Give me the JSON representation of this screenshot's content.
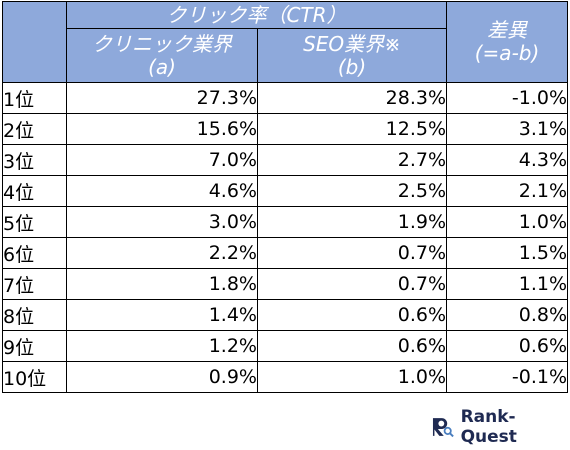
{
  "table": {
    "header": {
      "ctr_group": "クリック率（CTR）",
      "clinic_line1": "クリニック業界",
      "clinic_line2": "(a)",
      "seo_line1": "SEO業界※",
      "seo_line2": "(b)",
      "diff_line1": "差異",
      "diff_line2": "(=a-b)"
    },
    "rows": [
      {
        "rank": "1位",
        "clinic": "27.3%",
        "seo": "28.3%",
        "diff": "-1.0%"
      },
      {
        "rank": "2位",
        "clinic": "15.6%",
        "seo": "12.5%",
        "diff": "3.1%"
      },
      {
        "rank": "3位",
        "clinic": "7.0%",
        "seo": "2.7%",
        "diff": "4.3%"
      },
      {
        "rank": "4位",
        "clinic": "4.6%",
        "seo": "2.5%",
        "diff": "2.1%"
      },
      {
        "rank": "5位",
        "clinic": "3.0%",
        "seo": "1.9%",
        "diff": "1.0%"
      },
      {
        "rank": "6位",
        "clinic": "2.2%",
        "seo": "0.7%",
        "diff": "1.5%"
      },
      {
        "rank": "7位",
        "clinic": "1.8%",
        "seo": "0.7%",
        "diff": "1.1%"
      },
      {
        "rank": "8位",
        "clinic": "1.4%",
        "seo": "0.6%",
        "diff": "0.8%"
      },
      {
        "rank": "9位",
        "clinic": "1.2%",
        "seo": "0.6%",
        "diff": "0.6%"
      },
      {
        "rank": "10位",
        "clinic": "0.9%",
        "seo": "1.0%",
        "diff": "-0.1%"
      }
    ]
  },
  "logo": {
    "text": "Rank-Quest",
    "icon": "r-magnifier-logo-icon",
    "color": "#1f2a52",
    "accent": "#4a7ebf"
  },
  "colors": {
    "header_bg": "#8ea9db",
    "header_text": "#ffffff"
  }
}
